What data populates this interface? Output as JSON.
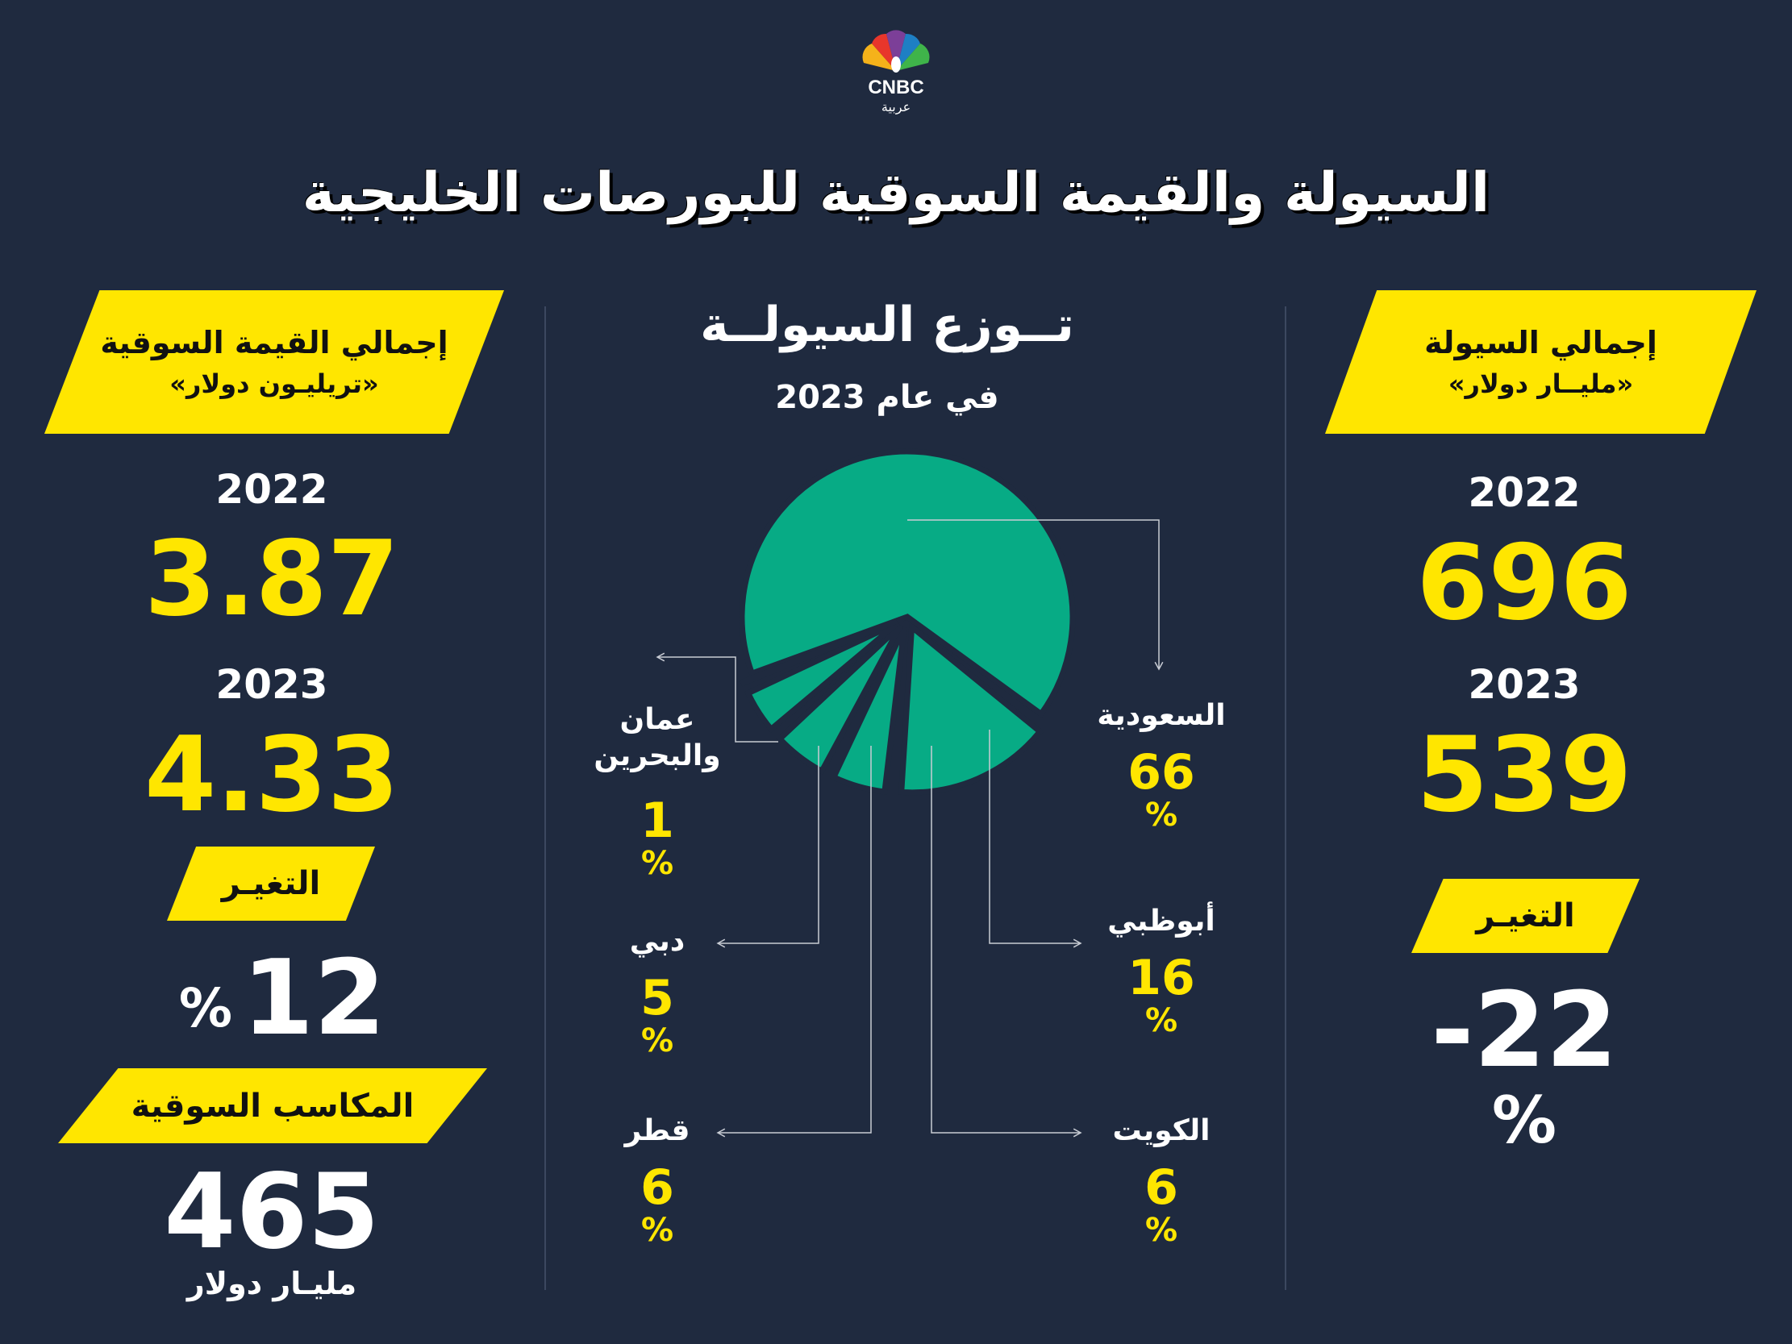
{
  "logo": {
    "brand": "CNBC",
    "sub": "عربية"
  },
  "title": "السيولة والقيمة السوقية للبورصات الخليجية",
  "liquidity": {
    "header_line1": "إجمالي السيولة",
    "header_line2": "«مليــار دولار»",
    "year1": "2022",
    "value1": "696",
    "year2": "2023",
    "value2": "539",
    "change_label": "التغيـر",
    "change_value": "-22",
    "change_pct": "%"
  },
  "market_cap": {
    "header_line1": "إجمالي القيمة السوقية",
    "header_line2": "«تريليـون دولار»",
    "year1": "2022",
    "value1": "3.87",
    "year2": "2023",
    "value2": "4.33",
    "change_label": "التغيـر",
    "change_value": "12",
    "change_pct": "%",
    "gains_label": "المكاسب السوقية",
    "gains_value": "465",
    "gains_unit": "مليـار دولار"
  },
  "colors": {
    "background": "#1f2a3f",
    "accent": "#ffe600",
    "pie": "#07ab85"
  },
  "chart_data": {
    "type": "pie",
    "title": "تــوزع السيولــة",
    "subtitle": "في عام 2023",
    "categories": [
      "السعودية",
      "أبوظبي",
      "الكويت",
      "قطر",
      "دبي",
      "عمان والبحرين"
    ],
    "values": [
      66,
      16,
      6,
      6,
      5,
      1
    ],
    "pct_label": "%"
  }
}
